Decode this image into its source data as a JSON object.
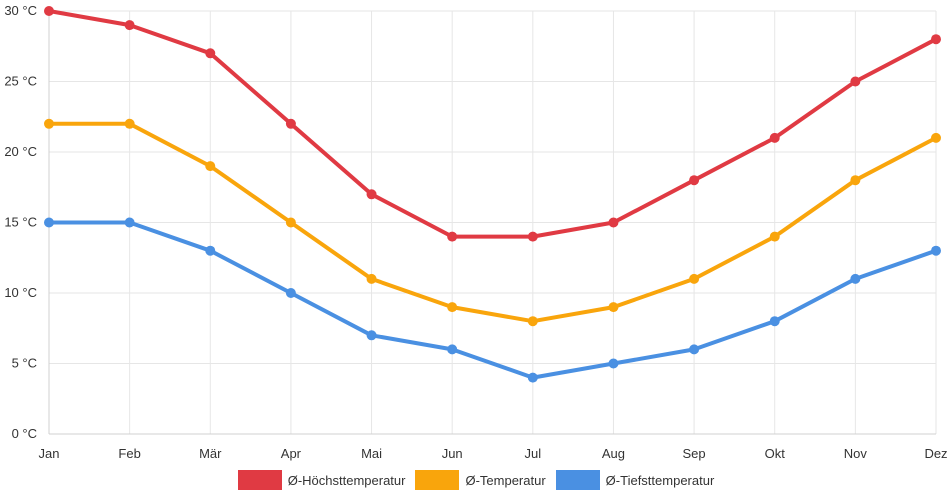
{
  "chart_data": {
    "type": "line",
    "categories": [
      "Jan",
      "Feb",
      "Mär",
      "Apr",
      "Mai",
      "Jun",
      "Jul",
      "Aug",
      "Sep",
      "Okt",
      "Nov",
      "Dez"
    ],
    "ylim": [
      0,
      30
    ],
    "yticks": [
      0,
      5,
      10,
      15,
      20,
      25,
      30
    ],
    "ytick_labels": [
      "0 °C",
      "5 °C",
      "10 °C",
      "15 °C",
      "20 °C",
      "25 °C",
      "30 °C"
    ],
    "grid": true,
    "legend_position": "bottom-center",
    "series": [
      {
        "name": "Ø-Höchsttemperatur",
        "color": "#e03a43",
        "values": [
          30,
          29,
          27,
          22,
          17,
          14,
          14,
          15,
          18,
          21,
          25,
          28
        ]
      },
      {
        "name": "Ø-Temperatur",
        "color": "#f9a50c",
        "values": [
          22,
          22,
          19,
          15,
          11,
          9,
          8,
          9,
          11,
          14,
          18,
          21
        ]
      },
      {
        "name": "Ø-Tiefsttemperatur",
        "color": "#4a90e2",
        "values": [
          15,
          15,
          13,
          10,
          7,
          6,
          4,
          5,
          6,
          8,
          11,
          13
        ]
      }
    ]
  }
}
